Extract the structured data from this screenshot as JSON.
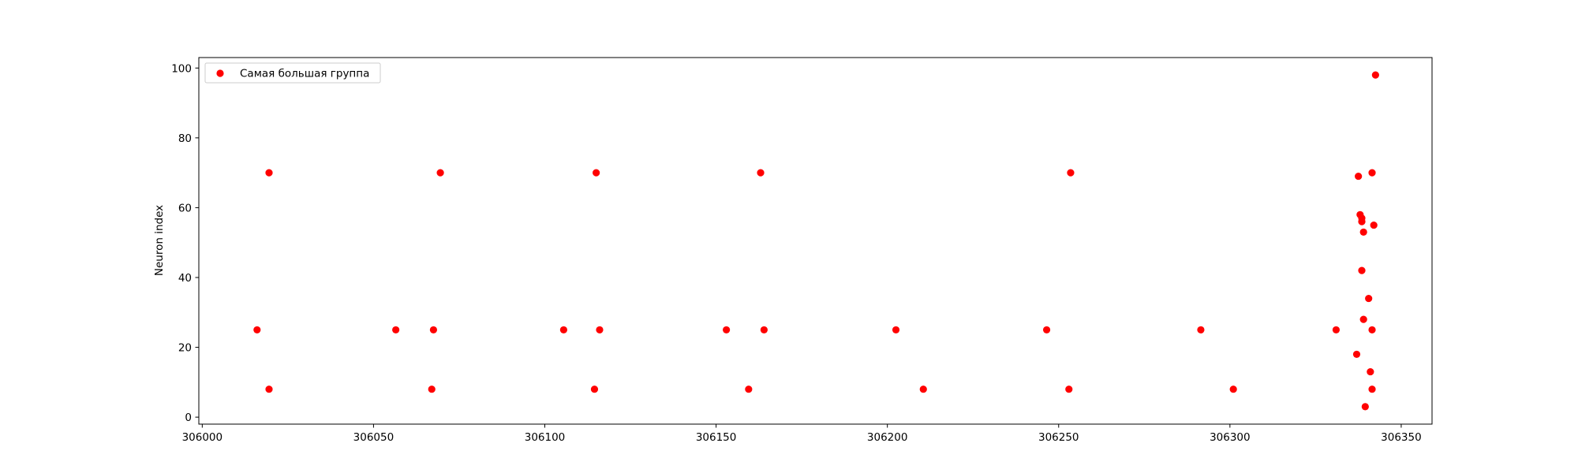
{
  "chart_data": {
    "type": "scatter",
    "title": "",
    "xlabel": "",
    "ylabel": "Neuron index",
    "xlim": [
      305999,
      306359
    ],
    "ylim": [
      -2,
      103
    ],
    "xticks": [
      306000,
      306050,
      306100,
      306150,
      306200,
      306250,
      306300,
      306350
    ],
    "yticks": [
      0,
      20,
      40,
      60,
      80,
      100
    ],
    "grid": false,
    "legend_position": "top-left",
    "series": [
      {
        "name": "Самая большая группа",
        "color": "#ff0000",
        "points": [
          [
            306016,
            25
          ],
          [
            306019.5,
            70
          ],
          [
            306019.5,
            8
          ],
          [
            306056.5,
            25
          ],
          [
            306067,
            8
          ],
          [
            306067.5,
            25
          ],
          [
            306069.5,
            70
          ],
          [
            306105.5,
            25
          ],
          [
            306114.5,
            8
          ],
          [
            306115,
            70
          ],
          [
            306116,
            25
          ],
          [
            306153,
            25
          ],
          [
            306159.5,
            8
          ],
          [
            306163,
            70
          ],
          [
            306164,
            25
          ],
          [
            306202.5,
            25
          ],
          [
            306210.5,
            8
          ],
          [
            306246.5,
            25
          ],
          [
            306253,
            8
          ],
          [
            306253.5,
            70
          ],
          [
            306291.5,
            25
          ],
          [
            306301,
            8
          ],
          [
            306331,
            25
          ],
          [
            306337,
            18
          ],
          [
            306337.5,
            69
          ],
          [
            306338,
            58
          ],
          [
            306338.5,
            57
          ],
          [
            306338.5,
            56
          ],
          [
            306338.5,
            42
          ],
          [
            306339,
            53
          ],
          [
            306339,
            28
          ],
          [
            306339.5,
            3
          ],
          [
            306340.5,
            34
          ],
          [
            306341,
            13
          ],
          [
            306341.5,
            70
          ],
          [
            306341.5,
            25
          ],
          [
            306341.5,
            8
          ],
          [
            306342,
            55
          ],
          [
            306342.5,
            98
          ]
        ]
      }
    ]
  }
}
